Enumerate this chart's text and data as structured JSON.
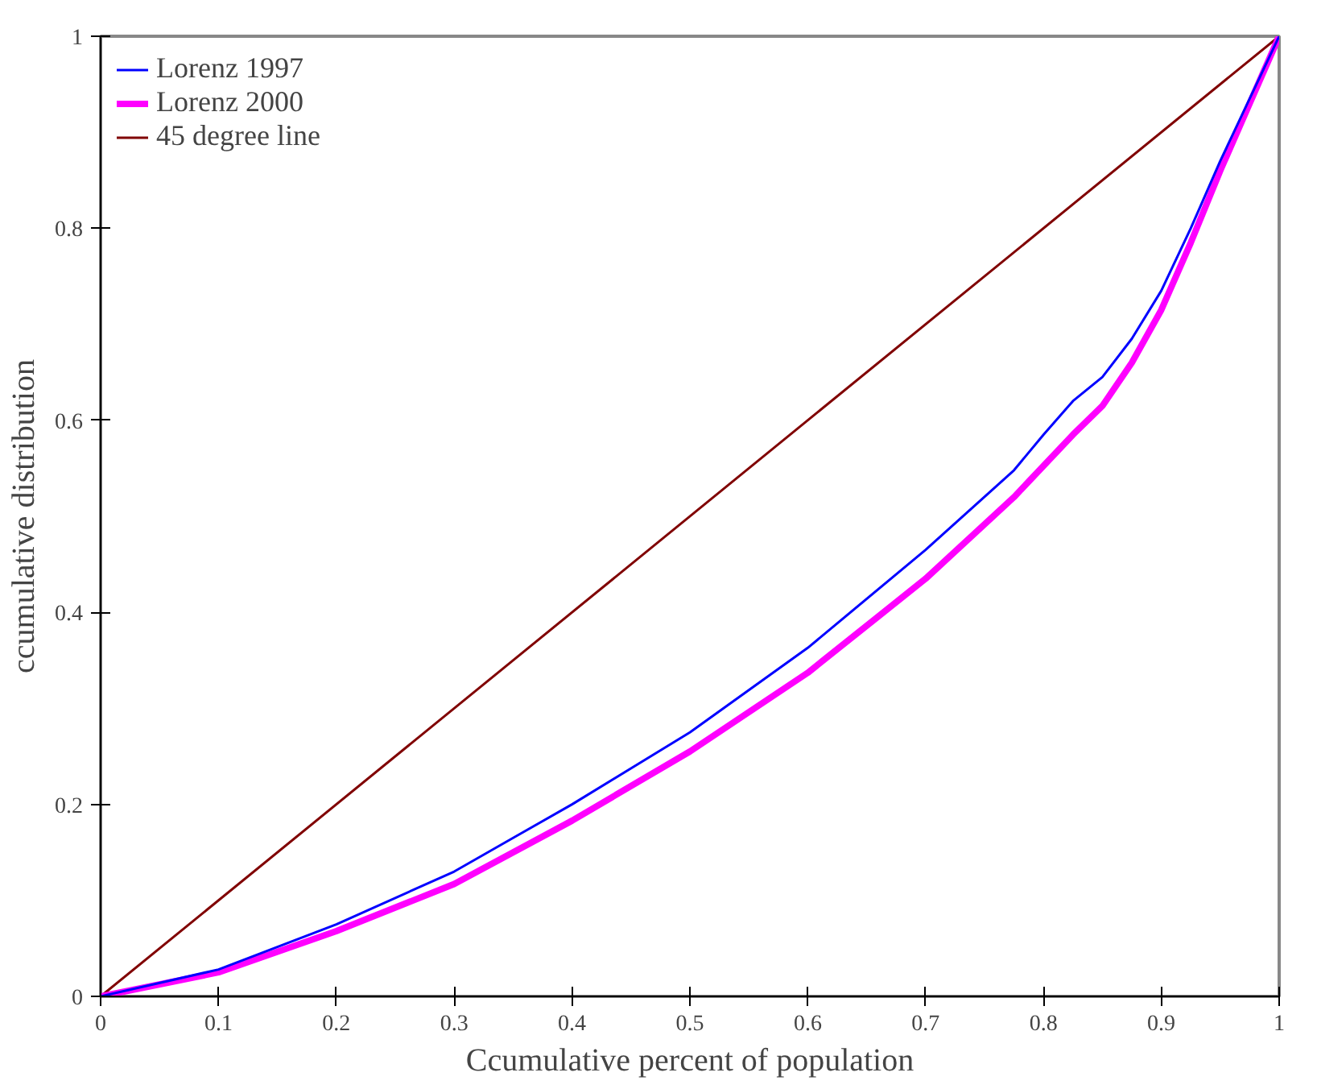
{
  "chart_data": {
    "type": "line",
    "xlabel": "Ccumulative percent of population",
    "ylabel": "ccumulative distribution",
    "xlim": [
      0,
      1
    ],
    "ylim": [
      0,
      1
    ],
    "xticks": [
      0,
      0.1,
      0.2,
      0.3,
      0.4,
      0.5,
      0.6,
      0.7,
      0.8,
      0.9,
      1
    ],
    "yticks": [
      0,
      0.2,
      0.4,
      0.6,
      0.8,
      1
    ],
    "grid": false,
    "legend": "top left",
    "marker": "none",
    "line_style": "solid",
    "series": [
      {
        "name": "Lorenz 1997",
        "color": "#0000ff",
        "x": [
          0,
          0.1,
          0.2,
          0.3,
          0.35,
          0.4,
          0.5,
          0.6,
          0.7,
          0.775,
          0.8,
          0.825,
          0.85,
          0.875,
          0.9,
          0.925,
          0.95,
          0.975,
          1
        ],
        "values": [
          0,
          0.028,
          0.075,
          0.13,
          0.165,
          0.2,
          0.275,
          0.363,
          0.465,
          0.548,
          0.585,
          0.62,
          0.645,
          0.685,
          0.735,
          0.8,
          0.87,
          0.935,
          1
        ]
      },
      {
        "name": "Lorenz 2000",
        "color": "#ff00ff",
        "x": [
          0,
          0.1,
          0.2,
          0.3,
          0.4,
          0.5,
          0.6,
          0.7,
          0.775,
          0.825,
          0.85,
          0.875,
          0.9,
          0.925,
          0.95,
          0.975,
          1
        ],
        "values": [
          0,
          0.025,
          0.068,
          0.117,
          0.183,
          0.255,
          0.337,
          0.435,
          0.52,
          0.585,
          0.615,
          0.66,
          0.715,
          0.785,
          0.86,
          0.93,
          1
        ]
      },
      {
        "name": "45 degree line",
        "color": "#800000",
        "x": [
          0,
          1
        ],
        "values": [
          0,
          1
        ]
      }
    ]
  }
}
